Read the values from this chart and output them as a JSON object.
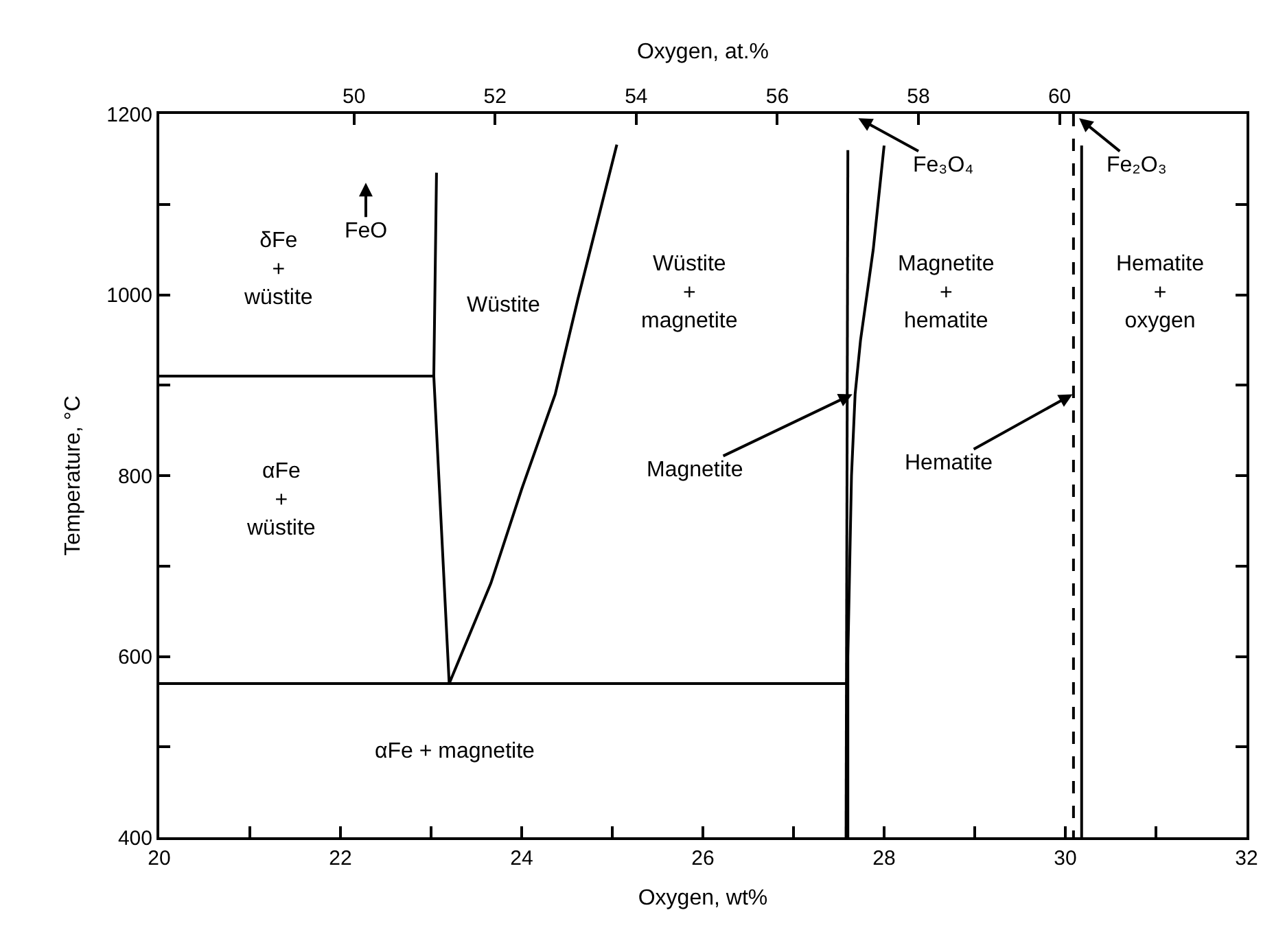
{
  "chart_data": {
    "type": "line",
    "xlabel": "Oxygen, wt%",
    "ylabel": "Temperature, °C",
    "x2label": "Oxygen, at.%",
    "xlim": [
      20,
      32
    ],
    "ylim": [
      400,
      1200
    ],
    "x2lim": [
      47.24,
      62.65
    ],
    "xticks": [
      20,
      {
        "value": 21,
        "label": null
      },
      22,
      {
        "value": 23,
        "label": null
      },
      24,
      {
        "value": 25,
        "label": null
      },
      26,
      {
        "value": 27,
        "label": null
      },
      28,
      {
        "value": 29,
        "label": null
      },
      30,
      {
        "value": 31,
        "label": null
      },
      32
    ],
    "yticks": [
      400,
      {
        "value": 500,
        "label": null
      },
      600,
      {
        "value": 700,
        "label": null
      },
      800,
      {
        "value": 900,
        "label": null
      },
      1000,
      {
        "value": 1100,
        "label": null
      },
      1200
    ],
    "x2ticks": [
      50,
      52,
      54,
      56,
      58,
      60
    ],
    "marker": "none",
    "series": [
      {
        "color": "#000000",
        "x": [
          20,
          23.03
        ],
        "values": [
          910,
          910
        ]
      },
      {
        "color": "#000000",
        "x": [
          23.06,
          23.03,
          23.2
        ],
        "values": [
          1135,
          910,
          570
        ]
      },
      {
        "color": "#000000",
        "x": [
          23.2,
          23.66,
          24.0,
          24.37,
          24.62,
          25.05
        ],
        "values": [
          570,
          681,
          785,
          890,
          995,
          1166
        ]
      },
      {
        "color": "#000000",
        "x": [
          20,
          27.58
        ],
        "values": [
          570,
          570
        ]
      },
      {
        "color": "#000000",
        "x": [
          27.6,
          27.58
        ],
        "values": [
          1160,
          400
        ]
      },
      {
        "color": "#000000",
        "x": [
          28.0,
          27.88,
          27.74,
          27.68,
          27.64,
          27.62,
          27.6,
          27.6
        ],
        "values": [
          1165,
          1050,
          950,
          890,
          800,
          700,
          600,
          400
        ]
      },
      {
        "color": "#000000",
        "x": [
          30.09,
          30.09
        ],
        "values": [
          1200,
          400
        ],
        "line_style": "dashed"
      },
      {
        "color": "#000000",
        "x": [
          30.18,
          30.18
        ],
        "values": [
          1165,
          400
        ]
      }
    ],
    "annotations": [
      "FeO",
      "Fe₃O₄",
      "Fe₂O₃",
      {
        "text": "Magnetite",
        "x": 27.65,
        "y": 890
      },
      {
        "text": "Hematite",
        "x": 30.08,
        "y": 890
      },
      "δFe\n+\nwüstite",
      "Wüstite",
      "Wüstite\n+\nmagnetite",
      "Magnetite\n+\nhematite",
      "Hematite\n+\noxygen",
      "αFe\n+\nwüstite",
      "αFe + magnetite"
    ]
  }
}
